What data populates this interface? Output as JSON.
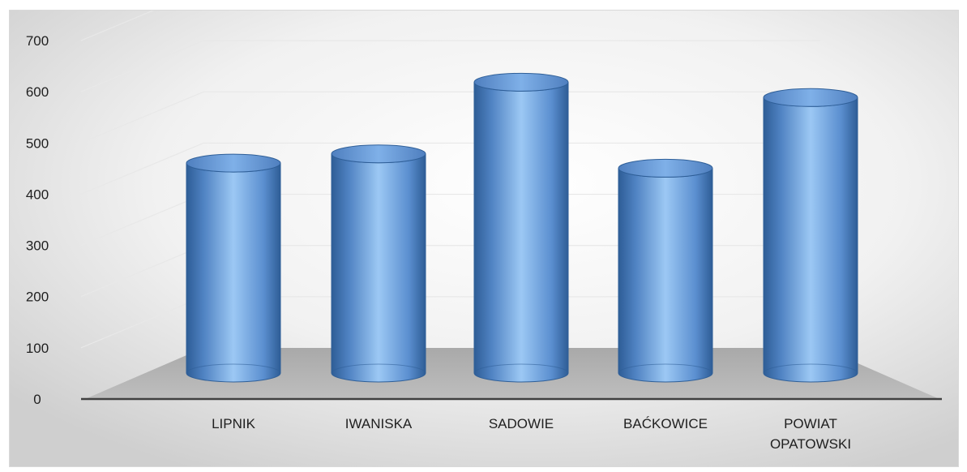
{
  "chart_data": {
    "type": "bar",
    "bar_shape": "cylinder",
    "style": "3d",
    "title": "",
    "xlabel": "",
    "ylabel": "",
    "categories": [
      "LIPNIK",
      "IWANISKA",
      "SADOWIE",
      "BAĆKOWICE",
      "POWIAT OPATOWSKI"
    ],
    "category_label_lines": [
      [
        "LIPNIK"
      ],
      [
        "IWANISKA"
      ],
      [
        "SADOWIE"
      ],
      [
        "BAĆKOWICE"
      ],
      [
        "POWIAT",
        "OPATOWSKI"
      ]
    ],
    "values": [
      410,
      428,
      568,
      400,
      538
    ],
    "ylim": [
      0,
      700
    ],
    "yticks": [
      0,
      100,
      200,
      300,
      400,
      500,
      600,
      700
    ],
    "grid": true,
    "legend": "none",
    "colors": {
      "bar_light": "#9cc8f4",
      "bar_mid": "#5b8fd0",
      "bar_dark": "#2e5d96",
      "bar_edge": "#2f5f98",
      "floor": "#b3b3b3",
      "axis_line": "#404040",
      "gridline": "#e8e8e8"
    }
  }
}
